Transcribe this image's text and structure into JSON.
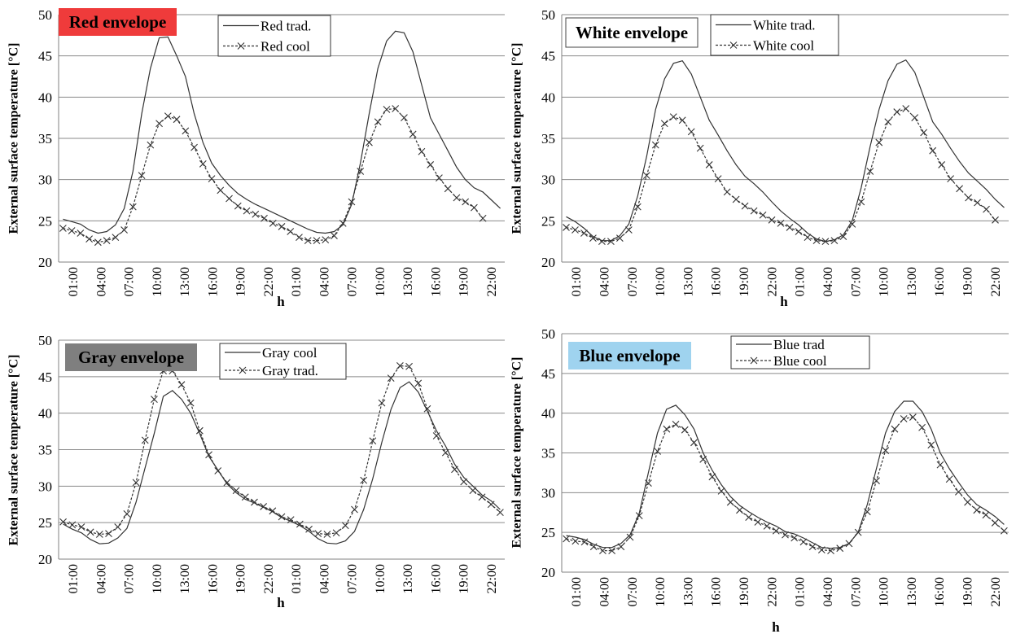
{
  "chart_data": [
    {
      "type": "line",
      "panel": "red",
      "title": "Red envelope",
      "title_bg": "#ef3b3b",
      "xlabel": "h",
      "ylabel": "External surface temperature [°C]",
      "ylim": [
        20,
        50
      ],
      "yticks": [
        20,
        25,
        30,
        35,
        40,
        45,
        50
      ],
      "grid": true,
      "legend_position": "top-center",
      "x_tick_labels": [
        "01:00",
        "04:00",
        "07:00",
        "10:00",
        "13:00",
        "16:00",
        "19:00",
        "22:00",
        "01:00",
        "04:00",
        "07:00",
        "10:00",
        "13:00",
        "16:00",
        "19:00",
        "22:00"
      ],
      "series": [
        {
          "name": "Red trad.",
          "style": "solid",
          "values": [
            25.2,
            24.9,
            24.6,
            23.9,
            23.5,
            23.7,
            24.5,
            26.5,
            31,
            38,
            43.5,
            47.2,
            47.3,
            45,
            42.5,
            38,
            34.5,
            32,
            30.5,
            29.3,
            28.3,
            27.6,
            27,
            26.5,
            26,
            25.5,
            25,
            24.5,
            24,
            23.6,
            23.5,
            23.7,
            24.5,
            27,
            32,
            38,
            43.5,
            46.8,
            48,
            47.8,
            45.5,
            41.5,
            37.5,
            35.5,
            33.5,
            31.5,
            30,
            29,
            28.5,
            27.5,
            26.5
          ]
        },
        {
          "name": "Red cool",
          "style": "dashed",
          "values": [
            24.1,
            23.8,
            23.5,
            22.8,
            22.4,
            22.6,
            23,
            23.9,
            26.7,
            30.5,
            34.2,
            36.8,
            37.7,
            37.3,
            35.9,
            33.9,
            31.9,
            30.1,
            28.7,
            27.7,
            26.8,
            26.2,
            25.8,
            25.3,
            24.7,
            24.3,
            23.7,
            23,
            22.6,
            22.6,
            22.7,
            23.2,
            24.7,
            27.3,
            31,
            34.5,
            37,
            38.5,
            38.6,
            37.5,
            35.5,
            33.4,
            31.8,
            30.2,
            28.9,
            27.8,
            27.3,
            26.6,
            25.3
          ]
        }
      ]
    },
    {
      "type": "line",
      "panel": "white",
      "title": "White envelope",
      "title_bg": "#ffffff",
      "xlabel": "h",
      "ylabel": "External surface temperature [°C]",
      "ylim": [
        20,
        50
      ],
      "yticks": [
        20,
        25,
        30,
        35,
        40,
        45,
        50
      ],
      "grid": true,
      "legend_position": "top-center",
      "x_tick_labels": [
        "01:00",
        "04:00",
        "07:00",
        "10:00",
        "13:00",
        "16:00",
        "19:00",
        "22:00",
        "01:00",
        "04:00",
        "07:00",
        "10:00",
        "13:00",
        "16:00",
        "19:00",
        "22:00"
      ],
      "series": [
        {
          "name": "White trad.",
          "style": "solid",
          "values": [
            25.5,
            24.9,
            24.1,
            23.1,
            22.6,
            22.6,
            23.2,
            24.6,
            28,
            32.8,
            38.5,
            42.2,
            44.1,
            44.4,
            42.8,
            40,
            37.2,
            35.4,
            33.5,
            31.8,
            30.4,
            29.5,
            28.5,
            27.3,
            26.2,
            25.3,
            24.5,
            23.5,
            22.8,
            22.5,
            22.7,
            23.3,
            25,
            29,
            34,
            38.5,
            42,
            44,
            44.5,
            43,
            40,
            37,
            35.5,
            33.8,
            32.2,
            30.8,
            29.8,
            28.8,
            27.6,
            26.6
          ]
        },
        {
          "name": "White cool",
          "style": "dashed",
          "values": [
            24.2,
            23.9,
            23.5,
            22.9,
            22.5,
            22.5,
            22.9,
            23.9,
            26.7,
            30.5,
            34.2,
            36.8,
            37.6,
            37.2,
            35.8,
            33.8,
            31.8,
            30.1,
            28.5,
            27.6,
            26.8,
            26.2,
            25.7,
            25.1,
            24.7,
            24.2,
            23.7,
            23,
            22.6,
            22.5,
            22.6,
            23.1,
            24.6,
            27.3,
            31,
            34.5,
            37,
            38.2,
            38.6,
            37.5,
            35.7,
            33.5,
            31.8,
            30.1,
            28.9,
            27.8,
            27.2,
            26.4,
            25.1
          ]
        }
      ]
    },
    {
      "type": "line",
      "panel": "gray",
      "title": "Gray envelope",
      "title_bg": "#7f7f7f",
      "xlabel": "h",
      "ylabel": "External surface temperature [°C]",
      "ylim": [
        20,
        50
      ],
      "yticks": [
        20,
        25,
        30,
        35,
        40,
        45,
        50
      ],
      "grid": true,
      "legend_position": "top-center",
      "x_tick_labels": [
        "01:00",
        "04:00",
        "07:00",
        "10:00",
        "13:00",
        "16:00",
        "19:00",
        "22:00",
        "01:00",
        "04:00",
        "07:00",
        "10:00",
        "13:00",
        "16:00",
        "19:00",
        "22:00"
      ],
      "series": [
        {
          "name": "Gray cool",
          "style": "solid",
          "values": [
            24.8,
            24.1,
            23.6,
            22.7,
            22.1,
            22.2,
            22.9,
            24.2,
            27.8,
            32.5,
            37.2,
            42.3,
            43.1,
            41.9,
            40,
            37.2,
            34.1,
            32.2,
            30.3,
            29.1,
            28.2,
            27.7,
            27.1,
            26.5,
            25.7,
            25.2,
            24.6,
            23.8,
            22.8,
            22.2,
            22.1,
            22.5,
            23.8,
            26.8,
            31,
            36,
            40.5,
            43.5,
            44.3,
            42.9,
            40.3,
            37.6,
            35.5,
            33,
            31.2,
            30,
            28.8,
            28,
            26.8
          ]
        },
        {
          "name": "Gray trad.",
          "style": "dashed",
          "values": [
            25.1,
            24.7,
            24.4,
            23.7,
            23.4,
            23.5,
            24.4,
            26.2,
            30.5,
            36.3,
            41.9,
            45.8,
            45.8,
            43.9,
            41.4,
            37.6,
            34.3,
            32.1,
            30.5,
            29.4,
            28.5,
            27.8,
            27.2,
            26.6,
            25.8,
            25.4,
            24.8,
            24.1,
            23.5,
            23.4,
            23.6,
            24.6,
            26.8,
            30.8,
            36.2,
            41.4,
            44.8,
            46.5,
            46.4,
            44.1,
            40.6,
            36.9,
            34.6,
            32.3,
            30.6,
            29.4,
            28.5,
            27.5,
            26.4
          ]
        }
      ]
    },
    {
      "type": "line",
      "panel": "blue",
      "title": "Blue envelope",
      "title_bg": "#9fd3ef",
      "xlabel": "h",
      "ylabel": "External surface temperature [°C]",
      "ylim": [
        20,
        50
      ],
      "yticks": [
        20,
        25,
        30,
        35,
        40,
        45,
        50
      ],
      "grid": true,
      "legend_position": "top-center",
      "x_tick_labels": [
        "01:00",
        "04:00",
        "07:00",
        "10:00",
        "13:00",
        "16:00",
        "19:00",
        "22:00",
        "01:00",
        "04:00",
        "07:00",
        "10:00",
        "13:00",
        "16:00",
        "19:00",
        "22:00"
      ],
      "series": [
        {
          "name": "Blue trad",
          "style": "solid",
          "values": [
            24.6,
            24.4,
            24.1,
            23.5,
            23.1,
            23.1,
            23.6,
            24.7,
            27.4,
            32.5,
            37.5,
            40.5,
            41,
            39.8,
            38,
            35,
            32.8,
            31,
            29.5,
            28.4,
            27.6,
            26.9,
            26.3,
            25.8,
            25.1,
            24.8,
            24.3,
            23.7,
            23.1,
            23,
            23.1,
            23.6,
            25,
            28.5,
            33,
            37.5,
            40.2,
            41.5,
            41.5,
            40.2,
            38,
            35,
            33,
            31.3,
            29.7,
            28.5,
            27.8,
            27,
            26
          ]
        },
        {
          "name": "Blue cool",
          "style": "dashed",
          "values": [
            24.2,
            23.9,
            23.8,
            23.2,
            22.7,
            22.7,
            23.2,
            24.4,
            27.1,
            31.2,
            35.2,
            38,
            38.6,
            37.9,
            36.3,
            34.2,
            32,
            30.2,
            28.8,
            27.8,
            26.9,
            26.3,
            25.8,
            25.2,
            24.7,
            24.3,
            23.8,
            23.2,
            22.8,
            22.7,
            23,
            23.6,
            25,
            27.6,
            31.5,
            35.3,
            38,
            39.3,
            39.5,
            38.2,
            36,
            33.5,
            31.7,
            30.1,
            28.8,
            27.8,
            27.2,
            26.2,
            25.2
          ]
        }
      ]
    }
  ]
}
